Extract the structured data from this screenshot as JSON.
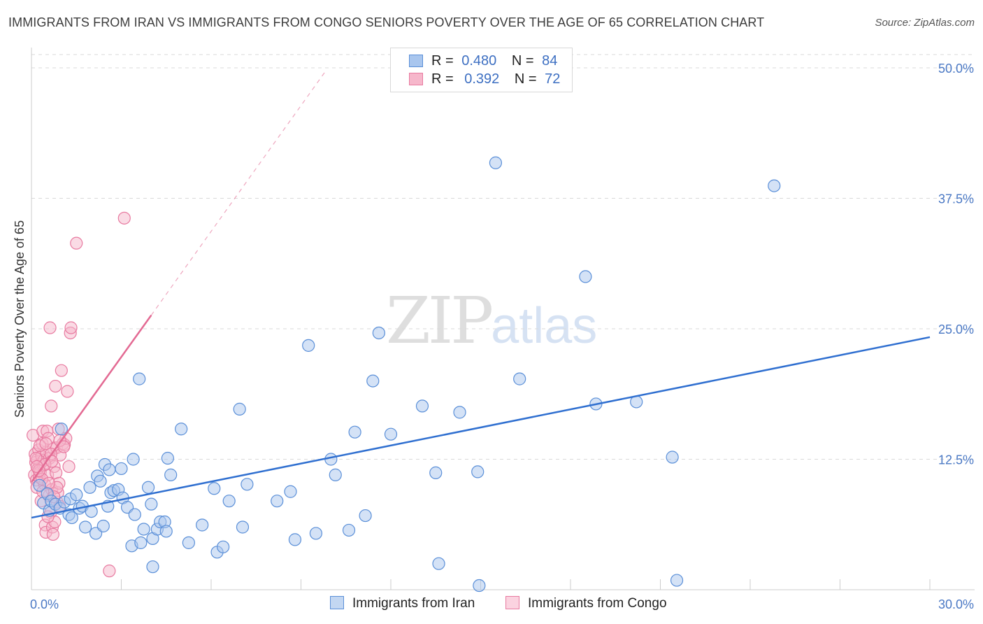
{
  "header": {
    "title": "IMMIGRANTS FROM IRAN VS IMMIGRANTS FROM CONGO SENIORS POVERTY OVER THE AGE OF 65 CORRELATION CHART",
    "source": "Source: ZipAtlas.com"
  },
  "watermark": {
    "zip": "ZIP",
    "atlas": "atlas"
  },
  "legend": {
    "iran": {
      "r_label": "R =",
      "r_value": "0.480",
      "n_label": "N =",
      "n_value": "84"
    },
    "congo": {
      "r_label": "R =",
      "r_value": "0.392",
      "n_label": "N =",
      "n_value": "72"
    }
  },
  "bottom_legend": {
    "iran": "Immigrants from Iran",
    "congo": "Immigrants from Congo"
  },
  "axes": {
    "ylabel": "Seniors Poverty Over the Age of 65",
    "x_min_label": "0.0%",
    "x_max_label": "30.0%",
    "y_ticks": [
      "12.5%",
      "25.0%",
      "37.5%",
      "50.0%"
    ]
  },
  "colors": {
    "iran_fill": "#a9c6ee",
    "iran_stroke": "#5a8fd8",
    "iran_line": "#2f6fd0",
    "congo_fill": "#f6b7cb",
    "congo_stroke": "#e87aa0",
    "congo_line": "#e36a93",
    "grid": "#d9d9d9",
    "tick_text": "#4a78c4"
  },
  "chart_data": {
    "type": "scatter",
    "title": "IMMIGRANTS FROM IRAN VS IMMIGRANTS FROM CONGO SENIORS POVERTY OVER THE AGE OF 65 CORRELATION CHART",
    "xlabel": "",
    "ylabel": "Seniors Poverty Over the Age of 65",
    "xlim": [
      0,
      30
    ],
    "ylim": [
      0,
      50
    ],
    "y_ticks": [
      12.5,
      25.0,
      37.5,
      50.0
    ],
    "grid": true,
    "legend_position": "top-center",
    "series": [
      {
        "name": "Immigrants from Iran",
        "stats": {
          "R": 0.48,
          "N": 84
        },
        "trend": {
          "x": [
            0,
            30
          ],
          "y": [
            6.9,
            24.2
          ],
          "style": "solid"
        },
        "points": [
          [
            0.27,
            10.0
          ],
          [
            0.4,
            8.3
          ],
          [
            0.53,
            9.2
          ],
          [
            0.6,
            7.6
          ],
          [
            0.66,
            8.5
          ],
          [
            0.8,
            8.2
          ],
          [
            0.95,
            7.8
          ],
          [
            1.1,
            8.4
          ],
          [
            1.25,
            7.2
          ],
          [
            1.3,
            8.7
          ],
          [
            1.35,
            6.9
          ],
          [
            1.5,
            9.1
          ],
          [
            1.6,
            7.8
          ],
          [
            1.7,
            8.0
          ],
          [
            1.8,
            6.0
          ],
          [
            1.95,
            9.8
          ],
          [
            2.15,
            5.4
          ],
          [
            2.2,
            10.9
          ],
          [
            2.3,
            10.4
          ],
          [
            2.45,
            12.0
          ],
          [
            2.55,
            8.0
          ],
          [
            2.6,
            11.5
          ],
          [
            2.65,
            9.3
          ],
          [
            2.75,
            9.5
          ],
          [
            2.9,
            9.6
          ],
          [
            3.0,
            11.6
          ],
          [
            3.05,
            8.8
          ],
          [
            3.2,
            7.9
          ],
          [
            3.35,
            4.2
          ],
          [
            3.45,
            7.2
          ],
          [
            3.4,
            12.5
          ],
          [
            3.6,
            20.2
          ],
          [
            3.65,
            4.5
          ],
          [
            3.75,
            5.8
          ],
          [
            3.9,
            9.8
          ],
          [
            4.05,
            2.2
          ],
          [
            4.05,
            4.9
          ],
          [
            4.2,
            5.8
          ],
          [
            4.3,
            6.5
          ],
          [
            4.45,
            6.5
          ],
          [
            4.5,
            5.6
          ],
          [
            4.55,
            12.6
          ],
          [
            4.65,
            11.0
          ],
          [
            5.0,
            15.4
          ],
          [
            5.25,
            4.5
          ],
          [
            6.2,
            3.6
          ],
          [
            6.1,
            9.7
          ],
          [
            6.4,
            4.1
          ],
          [
            6.6,
            8.5
          ],
          [
            6.95,
            17.3
          ],
          [
            7.05,
            6.0
          ],
          [
            7.2,
            10.1
          ],
          [
            8.2,
            8.5
          ],
          [
            8.65,
            9.4
          ],
          [
            9.25,
            23.4
          ],
          [
            9.5,
            5.4
          ],
          [
            10.0,
            12.5
          ],
          [
            10.15,
            11.0
          ],
          [
            10.6,
            5.7
          ],
          [
            10.8,
            15.1
          ],
          [
            11.15,
            7.1
          ],
          [
            11.4,
            20.0
          ],
          [
            11.6,
            24.6
          ],
          [
            12.0,
            14.9
          ],
          [
            13.05,
            17.6
          ],
          [
            13.5,
            11.2
          ],
          [
            13.6,
            2.5
          ],
          [
            14.3,
            17.0
          ],
          [
            14.95,
            0.4
          ],
          [
            14.9,
            11.3
          ],
          [
            15.5,
            40.9
          ],
          [
            16.3,
            20.2
          ],
          [
            18.5,
            30.0
          ],
          [
            18.85,
            17.8
          ],
          [
            20.2,
            18.0
          ],
          [
            21.4,
            12.7
          ],
          [
            21.55,
            0.9
          ],
          [
            24.8,
            38.7
          ],
          [
            4.0,
            8.2
          ],
          [
            2.0,
            7.5
          ],
          [
            1.0,
            15.4
          ],
          [
            2.4,
            6.1
          ],
          [
            5.7,
            6.2
          ],
          [
            8.8,
            4.8
          ]
        ]
      },
      {
        "name": "Immigrants from Congo",
        "stats": {
          "R": 0.392,
          "N": 72
        },
        "trend": {
          "x": [
            0,
            4.0
          ],
          "y": [
            10.3,
            26.3
          ],
          "style": "solid"
        },
        "trend_extension": {
          "x": [
            4.0,
            9.8
          ],
          "y": [
            26.3,
            49.6
          ],
          "style": "dashed"
        },
        "points": [
          [
            0.05,
            14.8
          ],
          [
            0.1,
            11.0
          ],
          [
            0.12,
            13.0
          ],
          [
            0.14,
            12.2
          ],
          [
            0.16,
            10.5
          ],
          [
            0.18,
            9.8
          ],
          [
            0.2,
            12.5
          ],
          [
            0.22,
            11.6
          ],
          [
            0.24,
            13.4
          ],
          [
            0.26,
            10.8
          ],
          [
            0.28,
            12.0
          ],
          [
            0.3,
            11.3
          ],
          [
            0.32,
            8.5
          ],
          [
            0.34,
            12.8
          ],
          [
            0.36,
            14.0
          ],
          [
            0.38,
            15.2
          ],
          [
            0.4,
            11.9
          ],
          [
            0.42,
            12.4
          ],
          [
            0.44,
            10.1
          ],
          [
            0.46,
            6.2
          ],
          [
            0.48,
            5.5
          ],
          [
            0.5,
            13.2
          ],
          [
            0.52,
            15.2
          ],
          [
            0.54,
            11.0
          ],
          [
            0.56,
            14.5
          ],
          [
            0.58,
            9.0
          ],
          [
            0.6,
            12.6
          ],
          [
            0.62,
            25.1
          ],
          [
            0.64,
            7.4
          ],
          [
            0.66,
            17.6
          ],
          [
            0.68,
            9.6
          ],
          [
            0.7,
            6.0
          ],
          [
            0.72,
            5.3
          ],
          [
            0.74,
            13.5
          ],
          [
            0.76,
            11.8
          ],
          [
            0.78,
            6.5
          ],
          [
            0.8,
            19.5
          ],
          [
            0.82,
            11.2
          ],
          [
            0.84,
            13.6
          ],
          [
            0.86,
            8.4
          ],
          [
            0.88,
            9.3
          ],
          [
            0.9,
            15.4
          ],
          [
            0.92,
            10.2
          ],
          [
            0.94,
            8.0
          ],
          [
            0.96,
            12.9
          ],
          [
            1.0,
            21.0
          ],
          [
            1.05,
            14.0
          ],
          [
            1.1,
            13.9
          ],
          [
            1.15,
            14.5
          ],
          [
            1.2,
            19.0
          ],
          [
            1.25,
            11.8
          ],
          [
            1.3,
            24.6
          ],
          [
            1.32,
            25.1
          ],
          [
            1.5,
            33.2
          ],
          [
            2.6,
            1.8
          ],
          [
            3.1,
            35.6
          ],
          [
            0.55,
            7.0
          ],
          [
            0.35,
            10.6
          ],
          [
            0.15,
            12.6
          ],
          [
            0.45,
            12.0
          ],
          [
            0.65,
            13.0
          ],
          [
            0.85,
            9.8
          ],
          [
            0.25,
            11.4
          ],
          [
            0.75,
            8.9
          ],
          [
            0.95,
            14.3
          ],
          [
            1.08,
            13.7
          ],
          [
            0.58,
            10.2
          ],
          [
            0.28,
            13.8
          ],
          [
            0.18,
            11.8
          ],
          [
            0.38,
            9.4
          ],
          [
            0.68,
            12.3
          ],
          [
            0.48,
            14.0
          ]
        ]
      }
    ]
  }
}
